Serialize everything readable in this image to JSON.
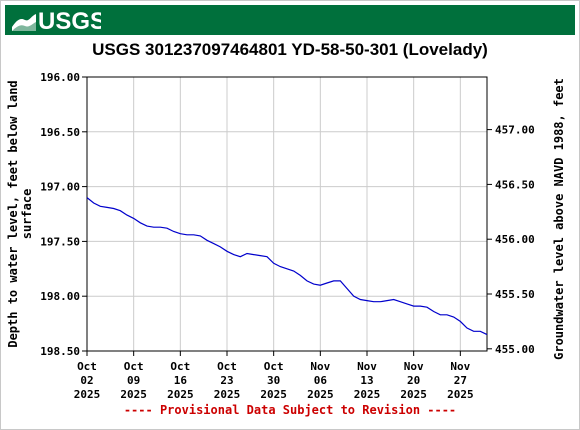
{
  "banner": {
    "logo_text": "USGS",
    "logo_icon": "usgs-wave-logo",
    "background_color": "#00703c"
  },
  "footer": {
    "text": "---- Provisional Data Subject to Revision ----",
    "color": "#cc0000"
  },
  "chart_data": {
    "type": "line",
    "title": "USGS 301237097464801 YD-58-50-301 (Lovelady)",
    "ylabel_left": [
      "Depth to water level, feet below land",
      "surface"
    ],
    "ylabel_right": "Groundwater level above NAVD 1988, feet",
    "xlim": [
      "2025-10-02",
      "2025-12-01"
    ],
    "ylim_left": [
      196.0,
      198.5
    ],
    "ylim_left_inverted": true,
    "ylim_right": [
      454.98,
      457.48
    ],
    "grid": true,
    "x_ticks": [
      {
        "date": "2025-10-02",
        "month": "Oct",
        "day": "02",
        "year": "2025"
      },
      {
        "date": "2025-10-09",
        "month": "Oct",
        "day": "09",
        "year": "2025"
      },
      {
        "date": "2025-10-16",
        "month": "Oct",
        "day": "16",
        "year": "2025"
      },
      {
        "date": "2025-10-23",
        "month": "Oct",
        "day": "23",
        "year": "2025"
      },
      {
        "date": "2025-10-30",
        "month": "Oct",
        "day": "30",
        "year": "2025"
      },
      {
        "date": "2025-11-06",
        "month": "Nov",
        "day": "06",
        "year": "2025"
      },
      {
        "date": "2025-11-13",
        "month": "Nov",
        "day": "13",
        "year": "2025"
      },
      {
        "date": "2025-11-20",
        "month": "Nov",
        "day": "20",
        "year": "2025"
      },
      {
        "date": "2025-11-27",
        "month": "Nov",
        "day": "27",
        "year": "2025"
      }
    ],
    "y_ticks_left": [
      "196.00",
      "196.50",
      "197.00",
      "197.50",
      "198.00",
      "198.50"
    ],
    "y_ticks_right": [
      "457.00",
      "456.50",
      "456.00",
      "455.50",
      "455.00"
    ],
    "series": [
      {
        "color": "#0000cc",
        "points": [
          [
            "2025-10-02",
            197.1
          ],
          [
            "2025-10-03",
            197.15
          ],
          [
            "2025-10-04",
            197.18
          ],
          [
            "2025-10-05",
            197.19
          ],
          [
            "2025-10-06",
            197.2
          ],
          [
            "2025-10-07",
            197.22
          ],
          [
            "2025-10-08",
            197.26
          ],
          [
            "2025-10-09",
            197.29
          ],
          [
            "2025-10-10",
            197.33
          ],
          [
            "2025-10-11",
            197.36
          ],
          [
            "2025-10-12",
            197.37
          ],
          [
            "2025-10-13",
            197.37
          ],
          [
            "2025-10-14",
            197.38
          ],
          [
            "2025-10-15",
            197.41
          ],
          [
            "2025-10-16",
            197.43
          ],
          [
            "2025-10-17",
            197.44
          ],
          [
            "2025-10-18",
            197.44
          ],
          [
            "2025-10-19",
            197.45
          ],
          [
            "2025-10-20",
            197.49
          ],
          [
            "2025-10-21",
            197.52
          ],
          [
            "2025-10-22",
            197.55
          ],
          [
            "2025-10-23",
            197.59
          ],
          [
            "2025-10-24",
            197.62
          ],
          [
            "2025-10-25",
            197.64
          ],
          [
            "2025-10-26",
            197.61
          ],
          [
            "2025-10-27",
            197.62
          ],
          [
            "2025-10-28",
            197.63
          ],
          [
            "2025-10-29",
            197.64
          ],
          [
            "2025-10-30",
            197.7
          ],
          [
            "2025-10-31",
            197.73
          ],
          [
            "2025-11-01",
            197.75
          ],
          [
            "2025-11-02",
            197.77
          ],
          [
            "2025-11-03",
            197.81
          ],
          [
            "2025-11-04",
            197.86
          ],
          [
            "2025-11-05",
            197.89
          ],
          [
            "2025-11-06",
            197.9
          ],
          [
            "2025-11-07",
            197.88
          ],
          [
            "2025-11-08",
            197.86
          ],
          [
            "2025-11-09",
            197.86
          ],
          [
            "2025-11-10",
            197.93
          ],
          [
            "2025-11-11",
            198.0
          ],
          [
            "2025-11-12",
            198.03
          ],
          [
            "2025-11-13",
            198.04
          ],
          [
            "2025-11-14",
            198.05
          ],
          [
            "2025-11-15",
            198.05
          ],
          [
            "2025-11-16",
            198.04
          ],
          [
            "2025-11-17",
            198.03
          ],
          [
            "2025-11-18",
            198.05
          ],
          [
            "2025-11-19",
            198.07
          ],
          [
            "2025-11-20",
            198.09
          ],
          [
            "2025-11-21",
            198.09
          ],
          [
            "2025-11-22",
            198.1
          ],
          [
            "2025-11-23",
            198.14
          ],
          [
            "2025-11-24",
            198.17
          ],
          [
            "2025-11-25",
            198.17
          ],
          [
            "2025-11-26",
            198.19
          ],
          [
            "2025-11-27",
            198.23
          ],
          [
            "2025-11-28",
            198.29
          ],
          [
            "2025-11-29",
            198.32
          ],
          [
            "2025-11-30",
            198.32
          ],
          [
            "2025-12-01",
            198.35
          ]
        ]
      }
    ]
  }
}
